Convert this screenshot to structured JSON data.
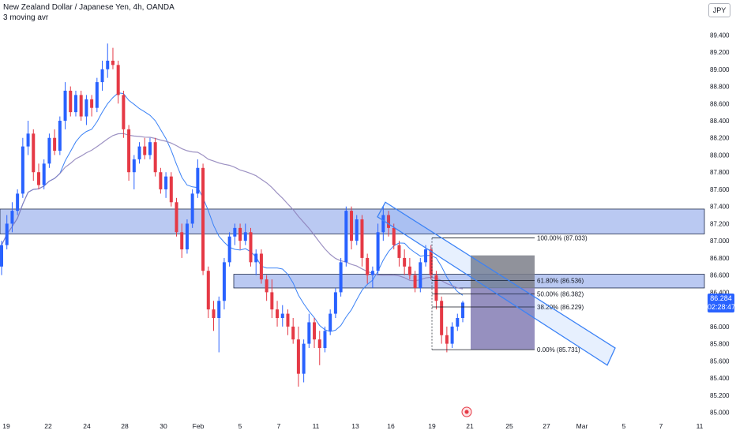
{
  "header": {
    "title": "New Zealand Dollar / Japanese Yen, 4h, OANDA",
    "indicator": "3 moving avr"
  },
  "currency_button": "JPY",
  "last_price": {
    "value": "86.284",
    "countdown": "02:28:47"
  },
  "colors": {
    "up": "#2962ff",
    "down": "#e53945",
    "zone_fill": "#5b7ee0",
    "ma_fast": "#3b82f6",
    "ma_slow": "#8c7fb8",
    "channel": "#3b82f6",
    "projection": "#8b84b8",
    "accent": "#2962ff"
  },
  "chart_data": {
    "type": "candlestick",
    "symbol": "NZDJPY",
    "timeframe": "4h",
    "ylim": [
      84.95,
      89.55
    ],
    "y_ticks": [
      "89.400",
      "89.200",
      "89.000",
      "88.800",
      "88.600",
      "88.400",
      "88.200",
      "88.000",
      "87.800",
      "87.600",
      "87.400",
      "87.200",
      "87.000",
      "86.800",
      "86.600",
      "86.400",
      "86.200",
      "86.000",
      "85.800",
      "85.600",
      "85.400",
      "85.200",
      "85.000"
    ],
    "x_ticks": [
      "19",
      "22",
      "24",
      "28",
      "30",
      "Feb",
      "5",
      "7",
      "11",
      "13",
      "16",
      "19",
      "21",
      "25",
      "27",
      "Mar",
      "5",
      "7",
      "11"
    ],
    "zones": [
      {
        "from": 87.08,
        "to": 87.37
      },
      {
        "from": 86.45,
        "to": 86.61
      }
    ],
    "fib_levels": [
      {
        "label": "100.00% (87.033)",
        "value": 87.033
      },
      {
        "label": "61.80% (86.536)",
        "value": 86.536
      },
      {
        "label": "50.00% (86.382)",
        "value": 86.382
      },
      {
        "label": "38.20% (86.229)",
        "value": 86.229
      },
      {
        "label": "0.00% (85.731)",
        "value": 85.731
      }
    ],
    "candles": [
      {
        "o": 86.7,
        "h": 87.0,
        "l": 86.6,
        "c": 86.95
      },
      {
        "o": 86.95,
        "h": 87.3,
        "l": 86.9,
        "c": 87.2
      },
      {
        "o": 87.2,
        "h": 87.45,
        "l": 87.1,
        "c": 87.35
      },
      {
        "o": 87.35,
        "h": 87.6,
        "l": 87.3,
        "c": 87.55
      },
      {
        "o": 87.55,
        "h": 88.2,
        "l": 87.5,
        "c": 88.1
      },
      {
        "o": 88.1,
        "h": 88.4,
        "l": 88.0,
        "c": 88.25
      },
      {
        "o": 88.25,
        "h": 88.3,
        "l": 87.7,
        "c": 87.8
      },
      {
        "o": 87.8,
        "h": 87.9,
        "l": 87.6,
        "c": 87.65
      },
      {
        "o": 87.65,
        "h": 87.95,
        "l": 87.6,
        "c": 87.9
      },
      {
        "o": 87.9,
        "h": 88.25,
        "l": 87.85,
        "c": 88.2
      },
      {
        "o": 88.2,
        "h": 88.3,
        "l": 88.0,
        "c": 88.05
      },
      {
        "o": 88.05,
        "h": 88.45,
        "l": 88.0,
        "c": 88.4
      },
      {
        "o": 88.4,
        "h": 88.85,
        "l": 88.3,
        "c": 88.75
      },
      {
        "o": 88.75,
        "h": 88.8,
        "l": 88.45,
        "c": 88.5
      },
      {
        "o": 88.5,
        "h": 88.75,
        "l": 88.45,
        "c": 88.7
      },
      {
        "o": 88.7,
        "h": 88.75,
        "l": 88.4,
        "c": 88.45
      },
      {
        "o": 88.45,
        "h": 88.7,
        "l": 88.35,
        "c": 88.65
      },
      {
        "o": 88.65,
        "h": 88.7,
        "l": 88.45,
        "c": 88.55
      },
      {
        "o": 88.55,
        "h": 88.9,
        "l": 88.5,
        "c": 88.85
      },
      {
        "o": 88.85,
        "h": 89.1,
        "l": 88.75,
        "c": 89.0
      },
      {
        "o": 89.0,
        "h": 89.3,
        "l": 88.9,
        "c": 89.1
      },
      {
        "o": 89.1,
        "h": 89.25,
        "l": 89.0,
        "c": 89.05
      },
      {
        "o": 89.05,
        "h": 89.1,
        "l": 88.6,
        "c": 88.7
      },
      {
        "o": 88.7,
        "h": 88.75,
        "l": 88.2,
        "c": 88.3
      },
      {
        "o": 88.3,
        "h": 88.35,
        "l": 87.7,
        "c": 87.8
      },
      {
        "o": 87.8,
        "h": 88.0,
        "l": 87.6,
        "c": 87.95
      },
      {
        "o": 87.95,
        "h": 88.15,
        "l": 87.9,
        "c": 88.1
      },
      {
        "o": 88.1,
        "h": 88.2,
        "l": 87.95,
        "c": 88.0
      },
      {
        "o": 88.0,
        "h": 88.2,
        "l": 87.95,
        "c": 88.15
      },
      {
        "o": 88.15,
        "h": 88.2,
        "l": 87.75,
        "c": 87.8
      },
      {
        "o": 87.8,
        "h": 87.85,
        "l": 87.55,
        "c": 87.6
      },
      {
        "o": 87.6,
        "h": 87.8,
        "l": 87.5,
        "c": 87.75
      },
      {
        "o": 87.75,
        "h": 87.8,
        "l": 87.4,
        "c": 87.45
      },
      {
        "o": 87.45,
        "h": 87.5,
        "l": 87.05,
        "c": 87.1
      },
      {
        "o": 87.1,
        "h": 87.2,
        "l": 86.8,
        "c": 86.9
      },
      {
        "o": 86.9,
        "h": 87.25,
        "l": 86.85,
        "c": 87.2
      },
      {
        "o": 87.2,
        "h": 87.6,
        "l": 87.15,
        "c": 87.55
      },
      {
        "o": 87.55,
        "h": 87.95,
        "l": 87.5,
        "c": 87.85
      },
      {
        "o": 87.85,
        "h": 87.9,
        "l": 86.6,
        "c": 86.65
      },
      {
        "o": 86.65,
        "h": 86.7,
        "l": 86.1,
        "c": 86.2
      },
      {
        "o": 86.2,
        "h": 86.3,
        "l": 85.95,
        "c": 86.1
      },
      {
        "o": 86.1,
        "h": 86.35,
        "l": 85.7,
        "c": 86.3
      },
      {
        "o": 86.3,
        "h": 86.8,
        "l": 86.2,
        "c": 86.75
      },
      {
        "o": 86.75,
        "h": 87.1,
        "l": 86.7,
        "c": 87.05
      },
      {
        "o": 87.05,
        "h": 87.2,
        "l": 86.95,
        "c": 87.15
      },
      {
        "o": 87.15,
        "h": 87.2,
        "l": 86.9,
        "c": 87.0
      },
      {
        "o": 87.0,
        "h": 87.2,
        "l": 86.95,
        "c": 87.1
      },
      {
        "o": 87.1,
        "h": 87.15,
        "l": 86.7,
        "c": 86.75
      },
      {
        "o": 86.75,
        "h": 86.9,
        "l": 86.6,
        "c": 86.85
      },
      {
        "o": 86.85,
        "h": 86.9,
        "l": 86.5,
        "c": 86.55
      },
      {
        "o": 86.55,
        "h": 86.6,
        "l": 86.3,
        "c": 86.4
      },
      {
        "o": 86.4,
        "h": 86.55,
        "l": 86.1,
        "c": 86.2
      },
      {
        "o": 86.2,
        "h": 86.3,
        "l": 86.0,
        "c": 86.1
      },
      {
        "o": 86.1,
        "h": 86.25,
        "l": 86.0,
        "c": 86.15
      },
      {
        "o": 86.15,
        "h": 86.2,
        "l": 85.9,
        "c": 86.0
      },
      {
        "o": 86.0,
        "h": 86.1,
        "l": 85.8,
        "c": 85.85
      },
      {
        "o": 85.85,
        "h": 86.0,
        "l": 85.3,
        "c": 85.45
      },
      {
        "o": 85.45,
        "h": 85.85,
        "l": 85.35,
        "c": 85.8
      },
      {
        "o": 85.8,
        "h": 86.15,
        "l": 85.75,
        "c": 86.05
      },
      {
        "o": 86.05,
        "h": 86.1,
        "l": 85.75,
        "c": 85.85
      },
      {
        "o": 85.85,
        "h": 85.95,
        "l": 85.55,
        "c": 85.75
      },
      {
        "o": 85.75,
        "h": 86.0,
        "l": 85.7,
        "c": 85.95
      },
      {
        "o": 85.95,
        "h": 86.2,
        "l": 85.9,
        "c": 86.15
      },
      {
        "o": 86.15,
        "h": 86.45,
        "l": 86.1,
        "c": 86.4
      },
      {
        "o": 86.4,
        "h": 86.8,
        "l": 86.35,
        "c": 86.75
      },
      {
        "o": 86.75,
        "h": 87.4,
        "l": 86.7,
        "c": 87.35
      },
      {
        "o": 87.35,
        "h": 87.4,
        "l": 86.9,
        "c": 87.0
      },
      {
        "o": 87.0,
        "h": 87.3,
        "l": 86.95,
        "c": 87.25
      },
      {
        "o": 87.25,
        "h": 87.3,
        "l": 86.7,
        "c": 86.8
      },
      {
        "o": 86.8,
        "h": 86.85,
        "l": 86.5,
        "c": 86.6
      },
      {
        "o": 86.6,
        "h": 86.7,
        "l": 86.45,
        "c": 86.65
      },
      {
        "o": 86.65,
        "h": 87.2,
        "l": 86.6,
        "c": 87.1
      },
      {
        "o": 87.1,
        "h": 87.4,
        "l": 87.0,
        "c": 87.3
      },
      {
        "o": 87.3,
        "h": 87.35,
        "l": 87.05,
        "c": 87.15
      },
      {
        "o": 87.15,
        "h": 87.2,
        "l": 86.9,
        "c": 86.95
      },
      {
        "o": 86.95,
        "h": 87.0,
        "l": 86.7,
        "c": 86.8
      },
      {
        "o": 86.8,
        "h": 86.9,
        "l": 86.6,
        "c": 86.7
      },
      {
        "o": 86.7,
        "h": 86.8,
        "l": 86.55,
        "c": 86.6
      },
      {
        "o": 86.6,
        "h": 86.65,
        "l": 86.4,
        "c": 86.45
      },
      {
        "o": 86.45,
        "h": 86.8,
        "l": 86.4,
        "c": 86.75
      },
      {
        "o": 86.75,
        "h": 86.95,
        "l": 86.7,
        "c": 86.9
      },
      {
        "o": 86.9,
        "h": 86.95,
        "l": 86.55,
        "c": 86.6
      },
      {
        "o": 86.6,
        "h": 86.65,
        "l": 86.2,
        "c": 86.3
      },
      {
        "o": 86.3,
        "h": 86.35,
        "l": 85.8,
        "c": 85.9
      },
      {
        "o": 85.9,
        "h": 86.0,
        "l": 85.7,
        "c": 85.8
      },
      {
        "o": 85.8,
        "h": 86.05,
        "l": 85.75,
        "c": 86.0
      },
      {
        "o": 86.0,
        "h": 86.15,
        "l": 85.95,
        "c": 86.1
      },
      {
        "o": 86.1,
        "h": 86.3,
        "l": 86.05,
        "c": 86.28
      }
    ]
  }
}
